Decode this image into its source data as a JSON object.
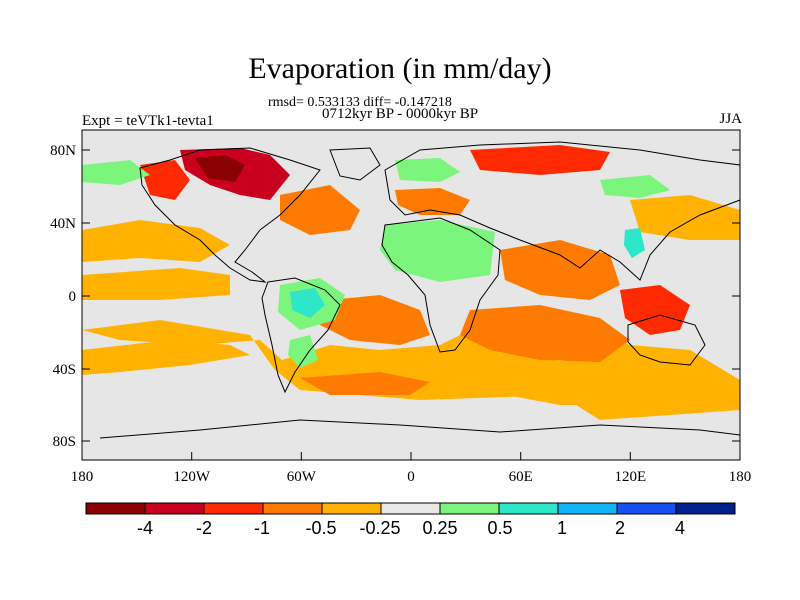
{
  "header": {
    "title": "Evaporation (in mm/day)",
    "stats": "rmsd= 0.533133 diff= -0.147218",
    "period": "0712kyr BP - 0000kyr BP",
    "experiment": "Expt = teVTk1-tevta1",
    "season": "JJA"
  },
  "map": {
    "x_ticks": [
      "180",
      "120W",
      "60W",
      "0",
      "60E",
      "120E",
      "180"
    ],
    "y_ticks": [
      "80N",
      "40N",
      "0",
      "40S",
      "80S"
    ]
  },
  "colorbar": {
    "colors": [
      "#8b0000",
      "#c8001e",
      "#ff2a00",
      "#ff7a00",
      "#ffb300",
      "#e8e8e8",
      "#7cf57c",
      "#2ee6c8",
      "#12b4f5",
      "#1450f0",
      "#00208c"
    ],
    "labels": [
      "-4",
      "-2",
      "-1",
      "-0.5",
      "-0.25",
      "0.25",
      "0.5",
      "1",
      "2",
      "4"
    ]
  }
}
